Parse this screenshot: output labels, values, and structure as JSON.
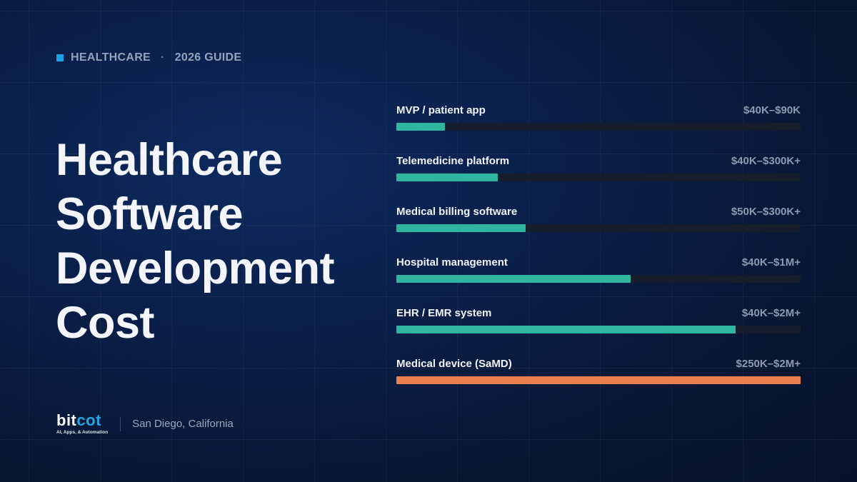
{
  "header": {
    "category": "HEALTHCARE",
    "separator": "·",
    "guide": "2026 GUIDE"
  },
  "title_lines": [
    "Healthcare",
    "Software",
    "Development",
    "Cost"
  ],
  "chart_data": {
    "type": "bar",
    "orientation": "horizontal",
    "categories": [
      "MVP / patient app",
      "Telemedicine platform",
      "Medical billing software",
      "Hospital management",
      "EHR / EMR system",
      "Medical device (SaMD)"
    ],
    "value_labels": [
      "$40K–$90K",
      "$40K–$300K+",
      "$50K–$300K+",
      "$40K–$1M+",
      "$40K–$2M+",
      "$250K–$2M+"
    ],
    "relative_values": [
      0.12,
      0.25,
      0.32,
      0.58,
      0.84,
      1.0
    ],
    "colors": [
      "#2fb5a0",
      "#2fb5a0",
      "#2fb5a0",
      "#2fb5a0",
      "#2fb5a0",
      "#ea7f4e"
    ],
    "track_color": "#161d2c"
  },
  "footer": {
    "logo_part1": "bit",
    "logo_part2": "cot",
    "logo_tagline": "AI, Apps, & Automation",
    "location": "San Diego, California"
  },
  "colors": {
    "accent_blue": "#1aa3e8",
    "bar_teal": "#2fb5a0",
    "bar_orange": "#ea7f4e"
  }
}
